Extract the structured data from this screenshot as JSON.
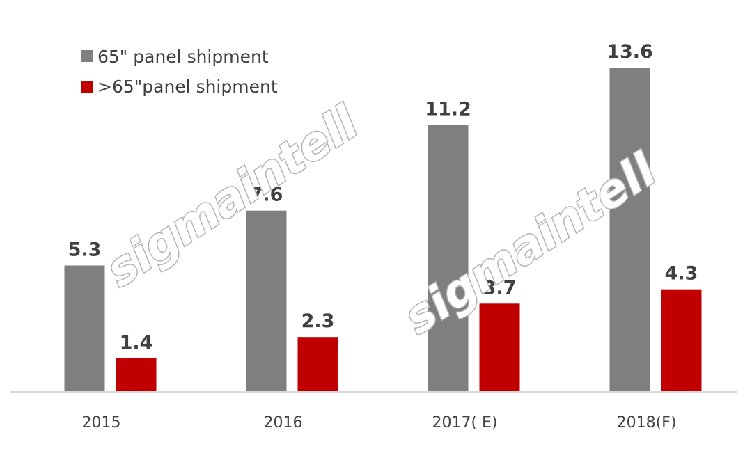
{
  "chart_data": {
    "type": "bar",
    "title": "",
    "xlabel": "",
    "ylabel": "",
    "categories": [
      "2015",
      "2016",
      "2017( E)",
      "2018(F)"
    ],
    "series": [
      {
        "name": "65\" panel shipment",
        "values": [
          5.3,
          7.6,
          11.2,
          13.6
        ],
        "labels": [
          "5.3",
          "7.6",
          "11.2",
          "13.6"
        ],
        "color": "#7f7f7f"
      },
      {
        "name": ">65\"panel shipment",
        "values": [
          1.4,
          2.3,
          3.7,
          4.3
        ],
        "labels": [
          "1.4",
          "2.3",
          "3.7",
          "4.3"
        ],
        "color": "#c00000"
      }
    ],
    "ylim": [
      0,
      16
    ],
    "grid": false,
    "legend_position": "top-left",
    "watermarks": [
      "sigmaintell",
      "sigmaintell"
    ]
  }
}
